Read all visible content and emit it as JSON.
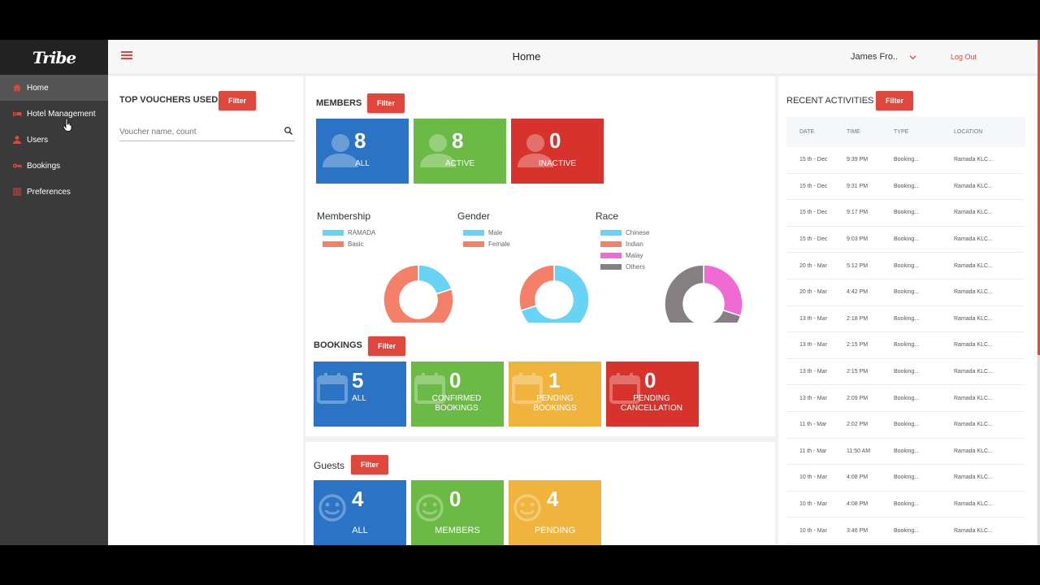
{
  "logo": "Tribe",
  "header": {
    "title": "Home",
    "user": "James Fro..",
    "logout": "Log Out"
  },
  "sidebar": {
    "items": [
      {
        "label": "Home",
        "icon": "home-icon",
        "active": true
      },
      {
        "label": "Hotel Management",
        "icon": "bed-icon",
        "active": false
      },
      {
        "label": "Users",
        "icon": "user-icon",
        "active": false
      },
      {
        "label": "Bookings",
        "icon": "key-icon",
        "active": false
      },
      {
        "label": "Preferences",
        "icon": "list-icon",
        "active": false
      }
    ]
  },
  "vouchers": {
    "title": "TOP VOUCHERS USED",
    "filter": "Filter",
    "search_placeholder": "Voucher name, count"
  },
  "members": {
    "title": "MEMBERS",
    "filter": "Filter",
    "tiles": [
      {
        "count": "8",
        "label": "ALL",
        "color": "#2b73c5"
      },
      {
        "count": "8",
        "label": "ACTIVE",
        "color": "#6aba45"
      },
      {
        "count": "0",
        "label": "INACTIVE",
        "color": "#d7322b"
      }
    ],
    "charts": [
      {
        "title": "Membership",
        "legend": [
          {
            "label": "RAMADA",
            "color": "#67d4f5"
          },
          {
            "label": "Basic",
            "color": "#f4806a"
          }
        ],
        "values": [
          20,
          80
        ]
      },
      {
        "title": "Gender",
        "legend": [
          {
            "label": "Male",
            "color": "#67d4f5"
          },
          {
            "label": "Female",
            "color": "#f4806a"
          }
        ],
        "values": [
          70,
          30
        ]
      },
      {
        "title": "Race",
        "legend": [
          {
            "label": "Chinese",
            "color": "#67d4f5"
          },
          {
            "label": "Indian",
            "color": "#f4806a"
          },
          {
            "label": "Malay",
            "color": "#f06ad4"
          },
          {
            "label": "Others",
            "color": "#857f82"
          }
        ],
        "values": [
          0,
          0,
          30,
          70
        ]
      }
    ]
  },
  "bookings": {
    "title": "BOOKINGS",
    "filter": "Filter",
    "tiles": [
      {
        "count": "5",
        "label": "ALL",
        "color": "#2b73c5"
      },
      {
        "count": "0",
        "label": "CONFIRMED BOOKINGS",
        "color": "#6aba45"
      },
      {
        "count": "1",
        "label": "PENDING BOOKINGS",
        "color": "#f0b33b"
      },
      {
        "count": "0",
        "label": "PENDING CANCELLATION",
        "color": "#d7322b"
      }
    ]
  },
  "guests": {
    "title": "Guests",
    "filter": "Filter",
    "tiles": [
      {
        "count": "4",
        "label": "ALL",
        "color": "#2b73c5"
      },
      {
        "count": "0",
        "label": "MEMBERS",
        "color": "#6aba45"
      },
      {
        "count": "4",
        "label": "PENDING",
        "color": "#f0b33b"
      }
    ]
  },
  "activities": {
    "title": "RECENT ACTIVITIES",
    "filter": "Filter",
    "columns": [
      "DATE",
      "TIME",
      "TYPE",
      "LOCATION"
    ],
    "rows": [
      [
        "15 th - Dec",
        "9:39 PM",
        "Booking...",
        "Ramada KLC..."
      ],
      [
        "15 th - Dec",
        "9:31 PM",
        "Booking...",
        "Ramada KLC..."
      ],
      [
        "15 th - Dec",
        "9:17 PM",
        "Booking...",
        "Ramada KLC..."
      ],
      [
        "15 th - Dec",
        "9:03 PM",
        "Booking...",
        "Ramada KLC..."
      ],
      [
        "20 th - Mar",
        "5:12 PM",
        "Booking...",
        "Ramada KLC..."
      ],
      [
        "20 th - Mar",
        "4:42 PM",
        "Booking...",
        "Ramada KLC..."
      ],
      [
        "13 th - Mar",
        "2:18 PM",
        "Booking...",
        "Ramada KLC..."
      ],
      [
        "13 th - Mar",
        "2:15 PM",
        "Booking...",
        "Ramada KLC..."
      ],
      [
        "13 th - Mar",
        "2:15 PM",
        "Booking...",
        "Ramada KLC..."
      ],
      [
        "13 th - Mar",
        "2:09 PM",
        "Booking...",
        "Ramada KLC..."
      ],
      [
        "11 th - Mar",
        "2:02 PM",
        "Booking...",
        "Ramada KLC..."
      ],
      [
        "11 th - Mar",
        "11:50 AM",
        "Booking...",
        "Ramada KLC..."
      ],
      [
        "10 th - Mar",
        "4:08 PM",
        "Booking...",
        "Ramada KLC..."
      ],
      [
        "10 th - Mar",
        "4:08 PM",
        "Booking...",
        "Ramada KLC..."
      ],
      [
        "10 th - Mar",
        "3:46 PM",
        "Booking...",
        "Ramada KLC..."
      ]
    ]
  }
}
